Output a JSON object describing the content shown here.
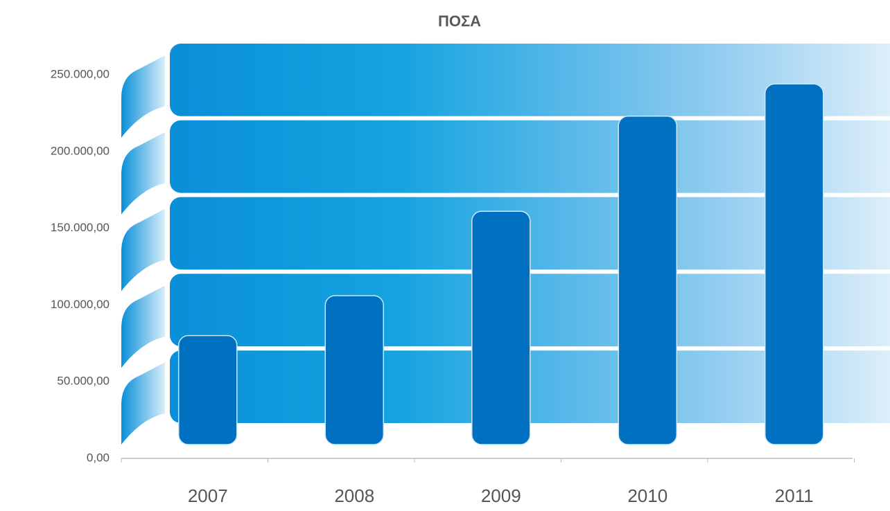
{
  "chart_data": {
    "type": "bar",
    "title": "ΠΟΣΑ",
    "categories": [
      "2007",
      "2008",
      "2009",
      "2010",
      "2011"
    ],
    "values": [
      71000,
      97000,
      152000,
      214000,
      235000
    ],
    "color": "#0070c0",
    "ylim": [
      0,
      250000
    ],
    "yticks": [
      {
        "value": 0,
        "label": "0,00"
      },
      {
        "value": 50000,
        "label": "50.000,00"
      },
      {
        "value": 100000,
        "label": "100.000,00"
      },
      {
        "value": 150000,
        "label": "150.000,00"
      },
      {
        "value": 200000,
        "label": "200.000,00"
      },
      {
        "value": 250000,
        "label": "250.000,00"
      }
    ],
    "grid": true
  }
}
